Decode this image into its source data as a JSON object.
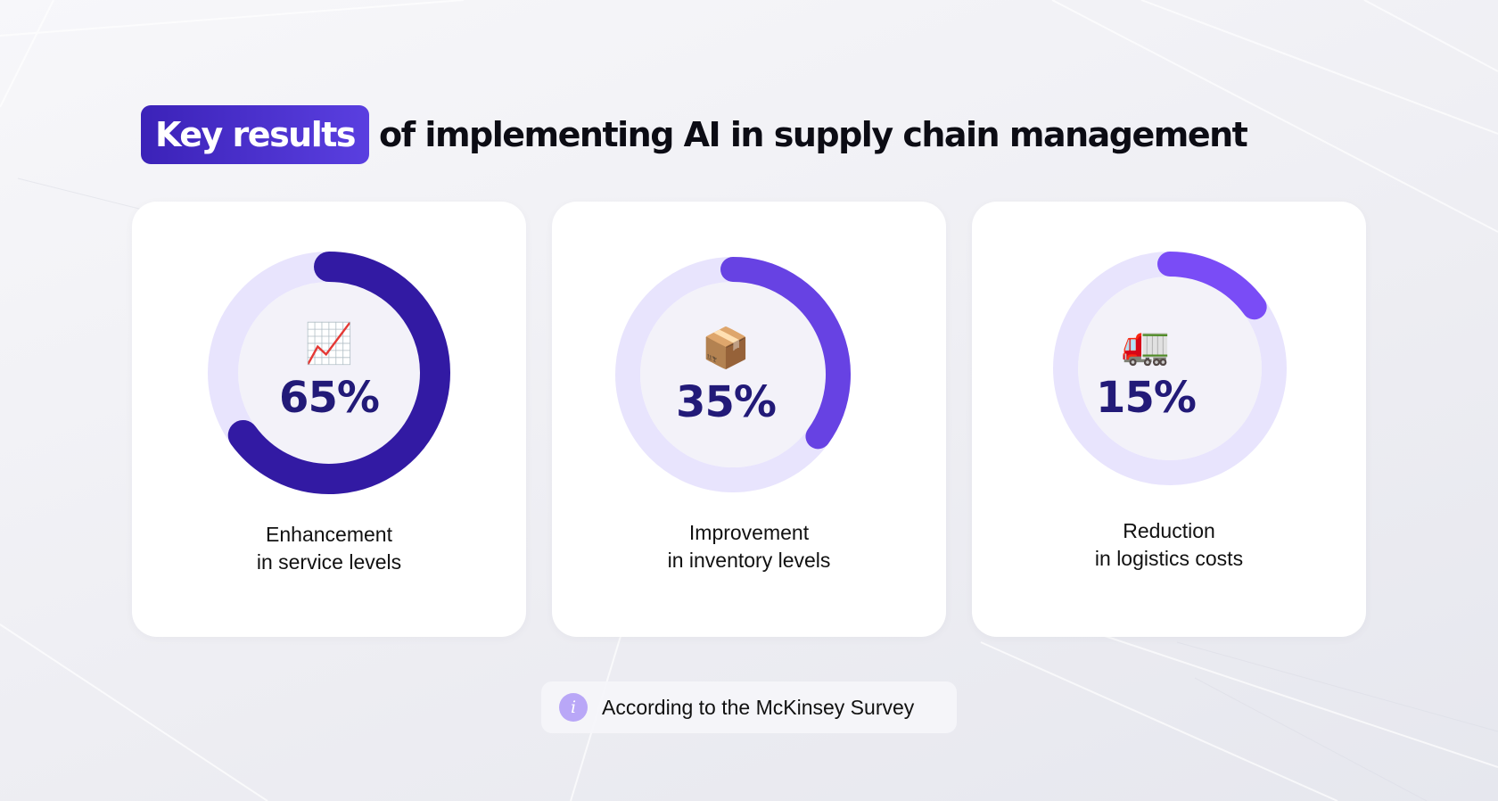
{
  "title": {
    "highlight": "Key results",
    "rest": "of implementing AI in supply chain management"
  },
  "colors": {
    "title_highlight": "#3b22b8",
    "value_text": "#221a78",
    "ring_track": "#e8e4fd",
    "info_icon": "#b9a7f7"
  },
  "cards": [
    {
      "icon": "chart-increasing-icon",
      "emoji": "📈",
      "value": "65%",
      "fraction": 0.65,
      "arc_color": "#321aa3",
      "caption_line1": "Enhancement",
      "caption_line2": "in service levels"
    },
    {
      "icon": "package-box-icon",
      "emoji": "📦",
      "value": "35%",
      "fraction": 0.35,
      "arc_color": "#6742e3",
      "caption_line1": "Improvement",
      "caption_line2": "in inventory levels"
    },
    {
      "icon": "delivery-truck-icon",
      "emoji": "🚛",
      "value": "15%",
      "fraction": 0.15,
      "arc_color": "#7a4cf6",
      "caption_line1": "Reduction",
      "caption_line2": "in logistics costs"
    }
  ],
  "source": {
    "icon": "info-icon",
    "text": "According to the McKinsey Survey"
  }
}
